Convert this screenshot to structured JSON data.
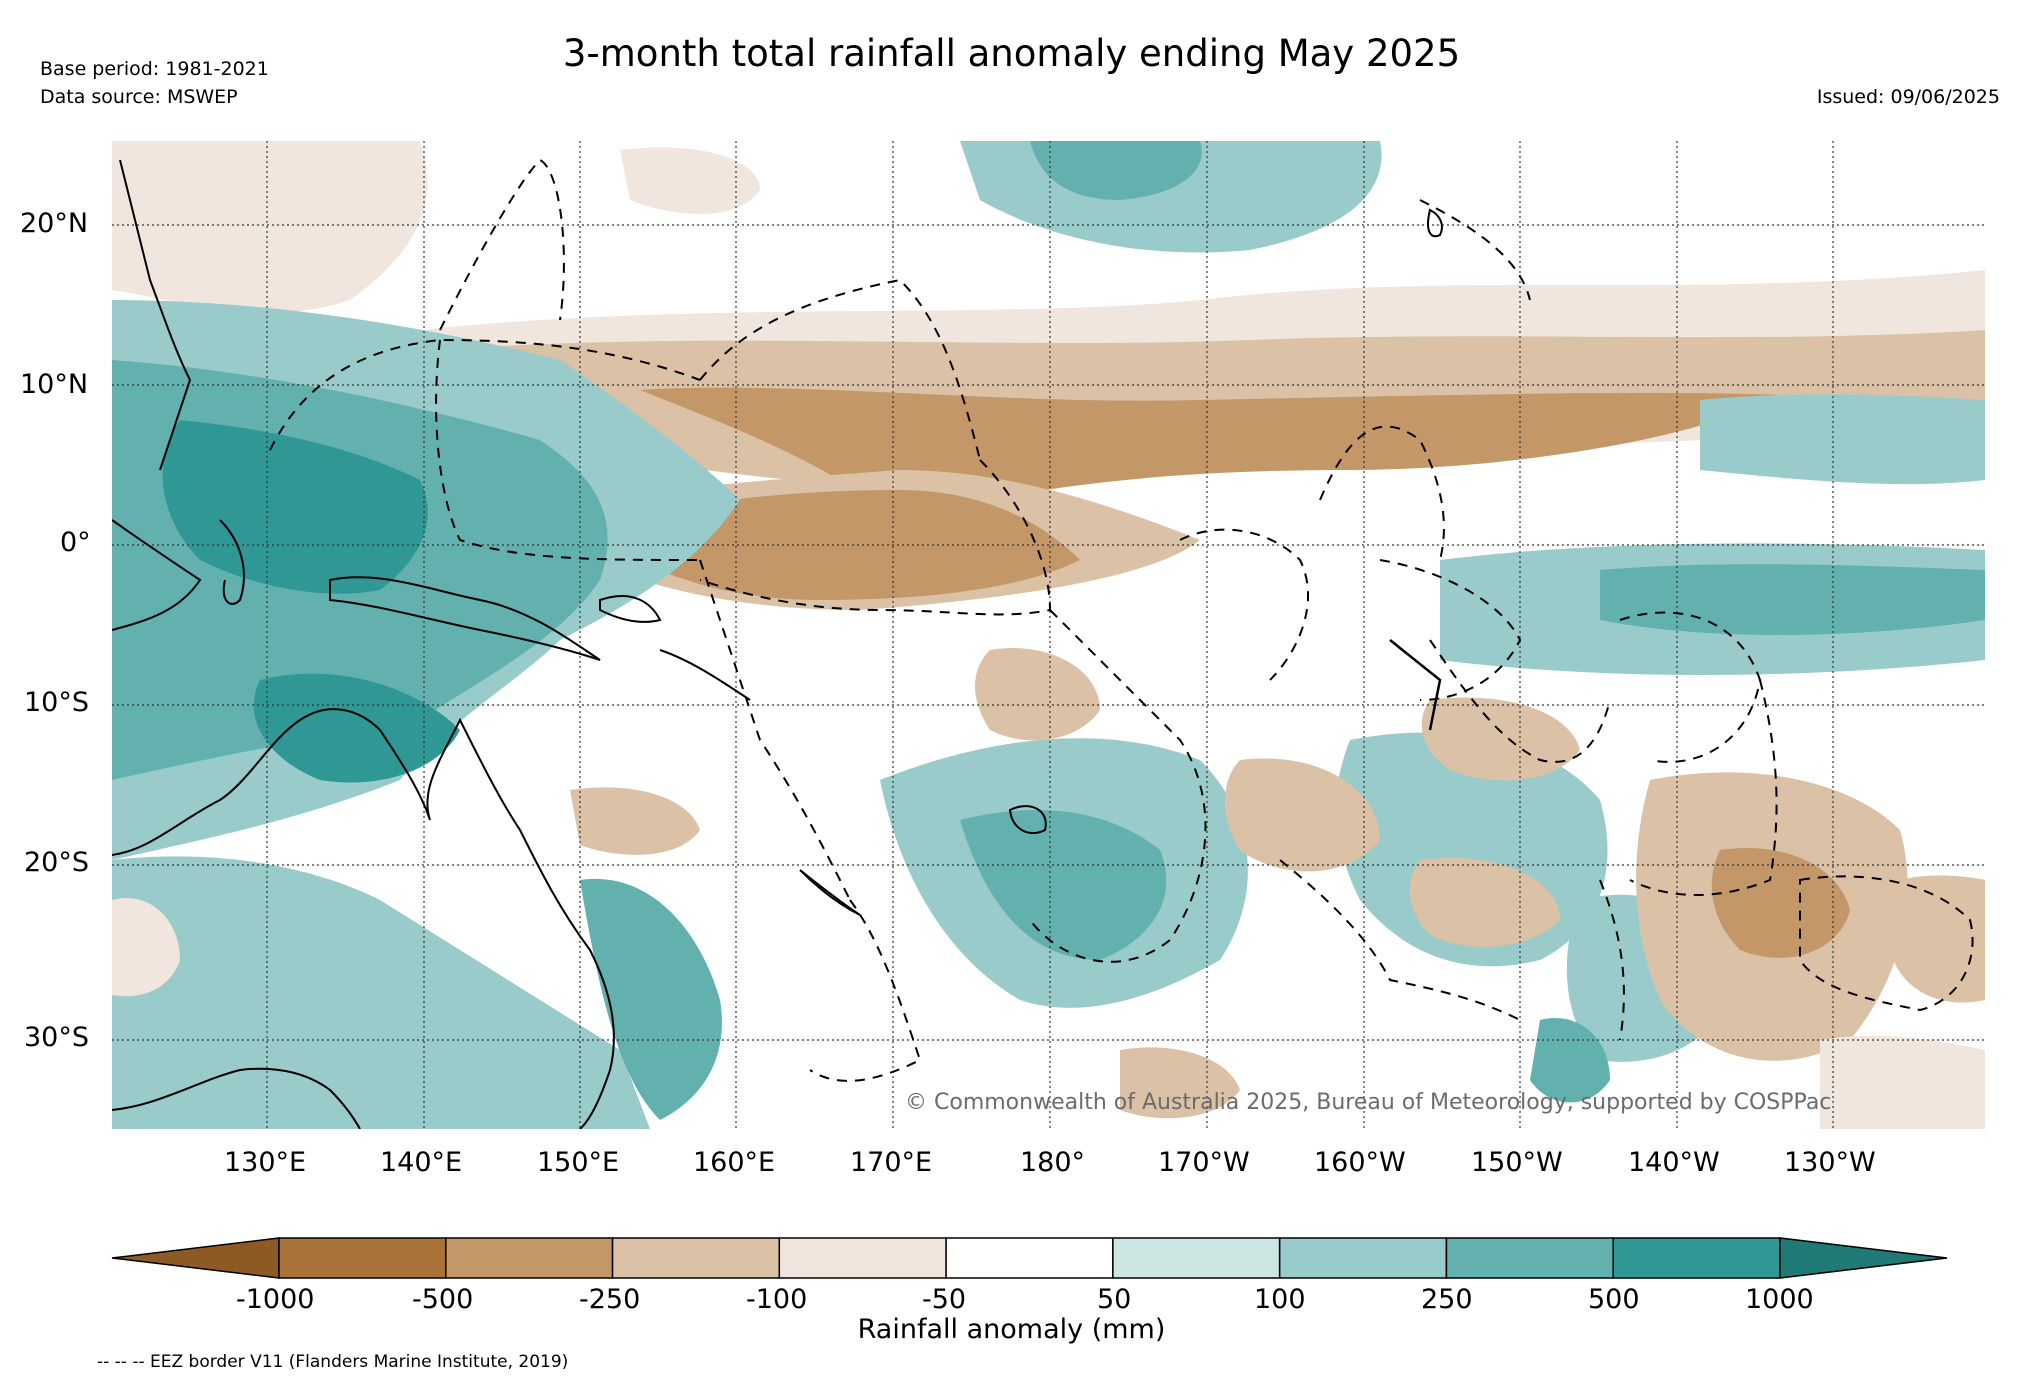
{
  "title": "3-month total rainfall anomaly ending May 2025",
  "base_period": "Base period: 1981-2021",
  "data_source": "Data source: MSWEP",
  "issued": "Issued: 09/06/2025",
  "copyright": "© Commonwealth of Australia 2025, Bureau of Meteorology, supported by COSPPac",
  "eez_note": "-- -- -- EEZ border V11 (Flanders Marine Institute, 2019)",
  "lat_labels": [
    "20°N",
    "10°N",
    "0°",
    "10°S",
    "20°S",
    "30°S"
  ],
  "lon_labels": [
    "130°E",
    "140°E",
    "150°E",
    "160°E",
    "170°E",
    "180°",
    "170°W",
    "160°W",
    "150°W",
    "140°W",
    "130°W"
  ],
  "colorbar": {
    "label": "Rainfall anomaly (mm)",
    "ticks": [
      "-1000",
      "-500",
      "-250",
      "-100",
      "-50",
      "50",
      "100",
      "250",
      "500",
      "1000"
    ],
    "colors": [
      "#8c5a22",
      "#a87239",
      "#c39768",
      "#dbc2a7",
      "#f0e6dd",
      "#ffffff",
      "#cce6e4",
      "#98cbc9",
      "#63b1ae",
      "#2f9894",
      "#1f7a76"
    ]
  }
}
